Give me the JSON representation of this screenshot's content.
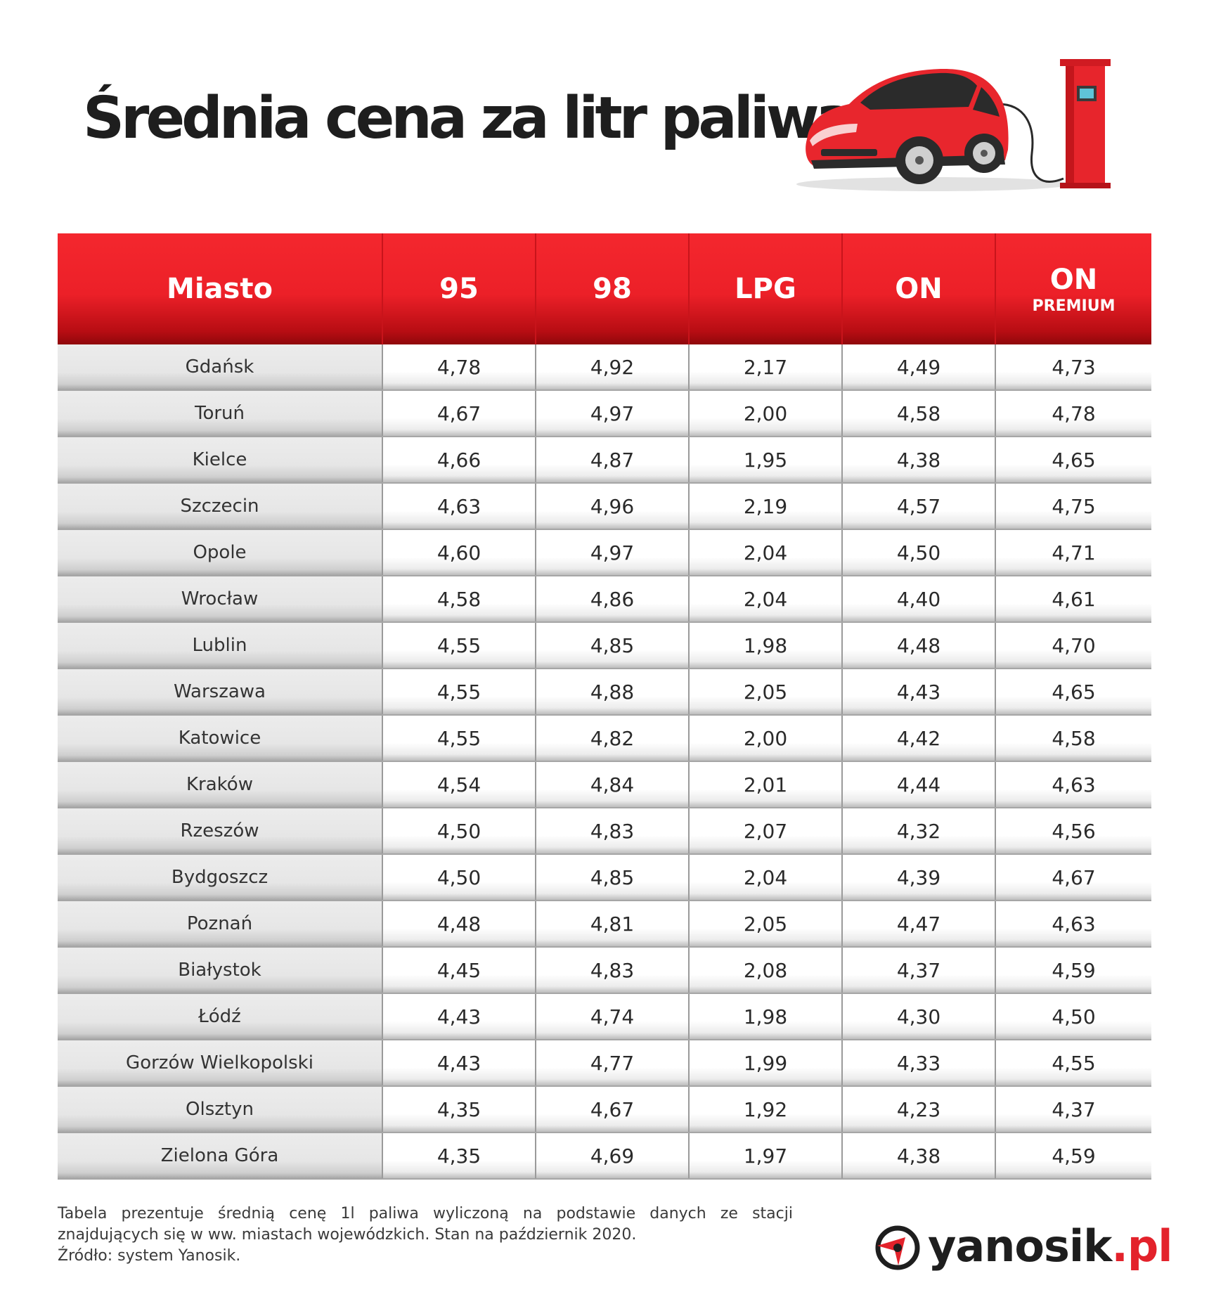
{
  "title": "Średnia cena za litr paliwa",
  "header": {
    "city": "Miasto",
    "fuel95": "95",
    "fuel98": "98",
    "lpg": "LPG",
    "on": "ON",
    "on_premium_main": "ON",
    "on_premium_sub": "PREMIUM"
  },
  "chart_data": {
    "type": "table",
    "columns": [
      "Miasto",
      "95",
      "98",
      "LPG",
      "ON",
      "ON PREMIUM"
    ],
    "rows": [
      [
        "Gdańsk",
        "4,78",
        "4,92",
        "2,17",
        "4,49",
        "4,73"
      ],
      [
        "Toruń",
        "4,67",
        "4,97",
        "2,00",
        "4,58",
        "4,78"
      ],
      [
        "Kielce",
        "4,66",
        "4,87",
        "1,95",
        "4,38",
        "4,65"
      ],
      [
        "Szczecin",
        "4,63",
        "4,96",
        "2,19",
        "4,57",
        "4,75"
      ],
      [
        "Opole",
        "4,60",
        "4,97",
        "2,04",
        "4,50",
        "4,71"
      ],
      [
        "Wrocław",
        "4,58",
        "4,86",
        "2,04",
        "4,40",
        "4,61"
      ],
      [
        "Lublin",
        "4,55",
        "4,85",
        "1,98",
        "4,48",
        "4,70"
      ],
      [
        "Warszawa",
        "4,55",
        "4,88",
        "2,05",
        "4,43",
        "4,65"
      ],
      [
        "Katowice",
        "4,55",
        "4,82",
        "2,00",
        "4,42",
        "4,58"
      ],
      [
        "Kraków",
        "4,54",
        "4,84",
        "2,01",
        "4,44",
        "4,63"
      ],
      [
        "Rzeszów",
        "4,50",
        "4,83",
        "2,07",
        "4,32",
        "4,56"
      ],
      [
        "Bydgoszcz",
        "4,50",
        "4,85",
        "2,04",
        "4,39",
        "4,67"
      ],
      [
        "Poznań",
        "4,48",
        "4,81",
        "2,05",
        "4,47",
        "4,63"
      ],
      [
        "Białystok",
        "4,45",
        "4,83",
        "2,08",
        "4,37",
        "4,59"
      ],
      [
        "Łódź",
        "4,43",
        "4,74",
        "1,98",
        "4,30",
        "4,50"
      ],
      [
        "Gorzów Wielkopolski",
        "4,43",
        "4,77",
        "1,99",
        "4,33",
        "4,55"
      ],
      [
        "Olsztyn",
        "4,35",
        "4,67",
        "1,92",
        "4,23",
        "4,37"
      ],
      [
        "Zielona Góra",
        "4,35",
        "4,69",
        "1,97",
        "4,38",
        "4,59"
      ]
    ]
  },
  "footnote": {
    "line1": "Tabela prezentuje średnią cenę 1l paliwa wyliczoną na podstawie danych ze stacji",
    "line2": "znajdujących się w ww. miastach wojewódzkich. Stan na październik 2020.",
    "line3": "Źródło: system Yanosik."
  },
  "brand": {
    "name": "yanosik",
    "tld": ".pl"
  },
  "colors": {
    "accent": "#e3222b",
    "header_dark": "#8f070b",
    "city_cell": "#e6e6e6"
  },
  "icons": [
    "electric-car-icon",
    "charging-station-icon",
    "yanosik-logo-icon"
  ]
}
